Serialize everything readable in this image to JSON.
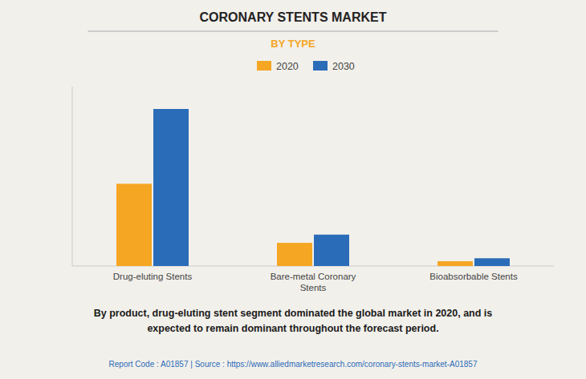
{
  "chart_data": {
    "type": "bar",
    "title": "CORONARY STENTS MARKET",
    "subtitle": "BY TYPE",
    "categories": [
      "Drug-eluting Stents",
      "Bare-metal Coronary\nStents",
      "Bioabsorbable Stents"
    ],
    "series": [
      {
        "name": "2020",
        "color": "#F5A623",
        "values": [
          5.5,
          1.55,
          0.32
        ]
      },
      {
        "name": "2030",
        "color": "#2B6CB8",
        "values": [
          10.5,
          2.1,
          0.52
        ]
      }
    ],
    "ylim": [
      0,
      12
    ],
    "grid": false,
    "legend": "top",
    "tick_labels": "x",
    "annotations": [
      "By product, drug-eluting stent segment dominated the global market in 2020, and is\nexpected to remain dominant throughout the forecast period.",
      "Report Code : A01857   |   Source : https://www.alliedmarketresearch.com/coronary-stents-market-A01857"
    ]
  }
}
